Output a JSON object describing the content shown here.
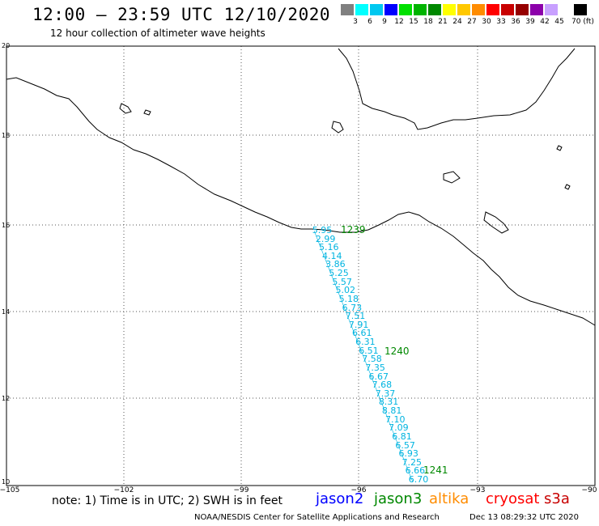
{
  "header": {
    "title": "12:00 – 23:59 UTC 12/10/2020",
    "subtitle": "12 hour collection of altimeter wave heights"
  },
  "color_scale": {
    "labels": [
      "3",
      "6",
      "9",
      "12",
      "15",
      "18",
      "21",
      "24",
      "27",
      "30",
      "33",
      "36",
      "39",
      "42",
      "45",
      "70 (ft)"
    ],
    "colors": [
      "#808080",
      "#00ffff",
      "#00c8f0",
      "#0000ff",
      "#00e000",
      "#00b400",
      "#008800",
      "#ffff00",
      "#ffc800",
      "#ff8c00",
      "#ff0000",
      "#c80000",
      "#960000",
      "#8c00aa",
      "#c8a0ff",
      "#ffffff",
      "#000000"
    ]
  },
  "axes": {
    "lat_labels": [
      "20",
      "18",
      "16",
      "14",
      "12",
      "10"
    ],
    "lon_labels": [
      "−105",
      "−102",
      "−99",
      "−96",
      "−93",
      "−90"
    ],
    "lat_range": [
      10,
      20
    ],
    "lon_range": [
      -105,
      -90
    ]
  },
  "track": {
    "wave_heights_ft": [
      "5.95",
      "2.99",
      "5.16",
      "4.14",
      "3.86",
      "5.25",
      "5.57",
      "5.02",
      "5.18",
      "6.73",
      "7.51",
      "7.91",
      "6.61",
      "6.31",
      "6.51",
      "7.58",
      "7.35",
      "6.67",
      "7.68",
      "7.37",
      "8.31",
      "8.81",
      "7.10",
      "7.09",
      "6.81",
      "6.57",
      "6.93",
      "7.25",
      "6.66",
      "6.70"
    ],
    "pass_times": [
      "1239",
      "1240",
      "1241"
    ],
    "color": "#00b4e0"
  },
  "footer": {
    "note": "note: 1) Time is in UTC; 2) SWH is in feet",
    "satellites": [
      {
        "name": "jason2",
        "color": "#0000ff"
      },
      {
        "name": "jason3",
        "color": "#008800"
      },
      {
        "name": "altika",
        "color": "#ff8c00"
      },
      {
        "name": "cryosat",
        "color": "#ff0000"
      },
      {
        "name": "s3a",
        "color": "#c80000"
      }
    ],
    "credit": "NOAA/NESDIS Center for Satellite Applications and Research",
    "timestamp": "Dec 13 08:29:32 UTC 2020"
  }
}
